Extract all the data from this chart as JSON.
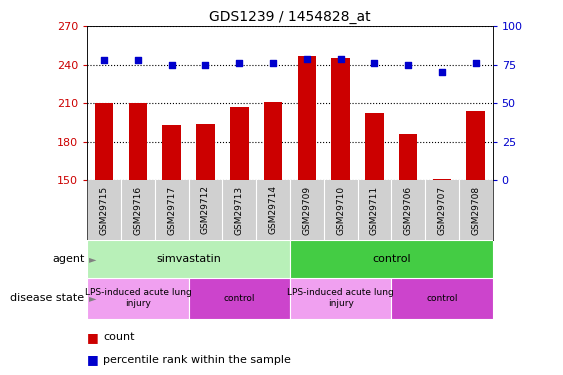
{
  "title": "GDS1239 / 1454828_at",
  "samples": [
    "GSM29715",
    "GSM29716",
    "GSM29717",
    "GSM29712",
    "GSM29713",
    "GSM29714",
    "GSM29709",
    "GSM29710",
    "GSM29711",
    "GSM29706",
    "GSM29707",
    "GSM29708"
  ],
  "counts": [
    210,
    210,
    193,
    194,
    207,
    211,
    247,
    245,
    202,
    186,
    151,
    204
  ],
  "percentiles": [
    78,
    78,
    75,
    75,
    76,
    76,
    79,
    79,
    76,
    75,
    70,
    76
  ],
  "ylim_left": [
    150,
    270
  ],
  "ylim_right": [
    0,
    100
  ],
  "yticks_left": [
    150,
    180,
    210,
    240,
    270
  ],
  "yticks_right": [
    0,
    25,
    50,
    75,
    100
  ],
  "bar_color": "#cc0000",
  "dot_color": "#0000cc",
  "agent_groups": [
    {
      "label": "simvastatin",
      "start": 0,
      "end": 6,
      "color_light": "#b8f0b8",
      "color_bright": "#44dd44"
    },
    {
      "label": "control",
      "start": 6,
      "end": 12,
      "color_light": "#b8f0b8",
      "color_bright": "#22cc22"
    }
  ],
  "disease_groups": [
    {
      "label": "LPS-induced acute lung\ninjury",
      "start": 0,
      "end": 3,
      "color": "#f0a0f0"
    },
    {
      "label": "control",
      "start": 3,
      "end": 6,
      "color": "#dd44dd"
    },
    {
      "label": "LPS-induced acute lung\ninjury",
      "start": 6,
      "end": 9,
      "color": "#f0a0f0"
    },
    {
      "label": "control",
      "start": 9,
      "end": 12,
      "color": "#dd44dd"
    }
  ],
  "sample_bg_color": "#d0d0d0",
  "legend_count_color": "#cc0000",
  "legend_dot_color": "#0000cc",
  "axis_color_left": "#cc0000",
  "axis_color_right": "#0000cc",
  "plot_bg_color": "#ffffff"
}
